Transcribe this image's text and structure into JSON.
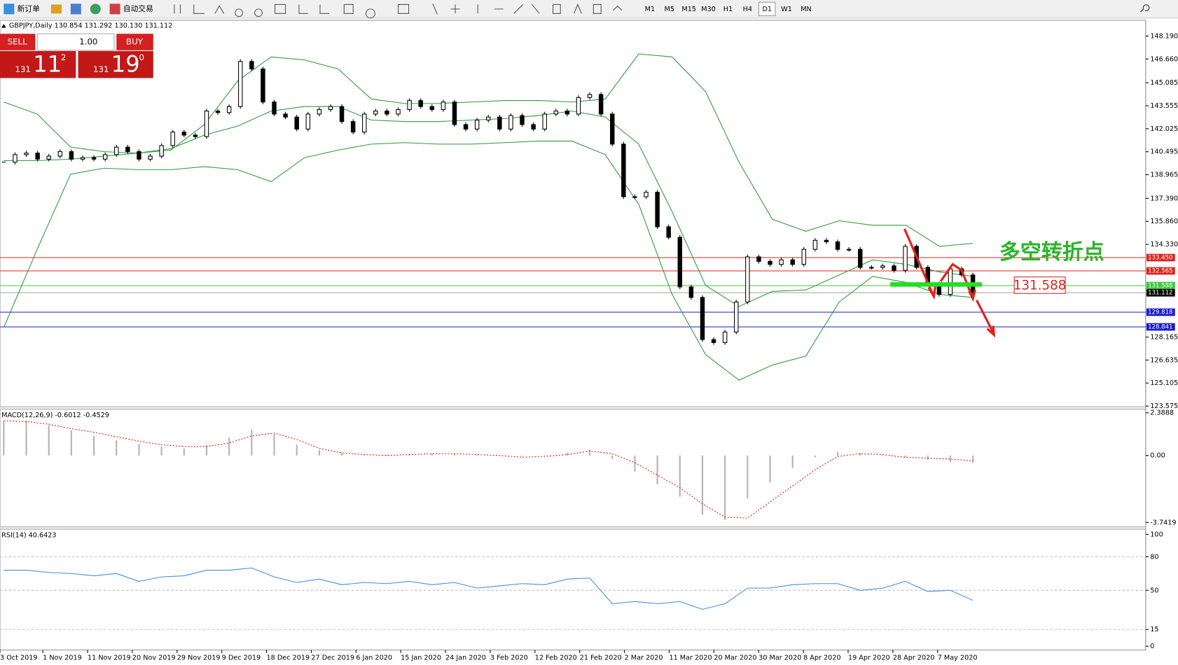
{
  "toolbar": {
    "new_order": "新订单",
    "auto_trading": "自动交易",
    "timeframes": [
      "M1",
      "M5",
      "M15",
      "M30",
      "H1",
      "H4",
      "D1",
      "W1",
      "MN"
    ],
    "active_timeframe": "D1"
  },
  "trade_panel": {
    "sell": "SELL",
    "buy": "BUY",
    "lots": "1.00",
    "sell_price": {
      "big": "131",
      "main": "11",
      "sup": "2"
    },
    "buy_price": {
      "big": "131",
      "main": "19",
      "sup": "0"
    }
  },
  "chart_data": [
    {
      "type": "candlestick",
      "title": "GBPJPY,Daily  130.854 131.292 130.130 131.112",
      "values": [
        139.8,
        140.3,
        140.4,
        140.0,
        140.2,
        140.5,
        140.0,
        140.1,
        140.0,
        140.3,
        140.8,
        140.5,
        140.0,
        140.2,
        140.9,
        141.8,
        141.6,
        141.5,
        143.2,
        143.1,
        143.5,
        146.5,
        146.0,
        143.8,
        143.0,
        142.8,
        142.0,
        143.0,
        143.3,
        143.5,
        142.5,
        141.8,
        143.0,
        143.2,
        143.0,
        143.3,
        143.9,
        143.5,
        143.3,
        143.8,
        142.3,
        142.0,
        142.6,
        142.8,
        142.0,
        142.9,
        142.3,
        142.0,
        143.0,
        143.2,
        143.0,
        144.1,
        144.3,
        143.0,
        141.0,
        137.5,
        137.5,
        137.8,
        135.5,
        134.8,
        131.5,
        130.8,
        128.0,
        127.8,
        128.5,
        130.5,
        133.5,
        133.2,
        133.0,
        133.3,
        133.0,
        134.0,
        134.6,
        134.5,
        134.0,
        134.0,
        132.8,
        132.8,
        132.9,
        132.6,
        134.2,
        132.8,
        131.7,
        131.0,
        132.7,
        132.3,
        131.1
      ],
      "bands": {
        "color": "#2e9b3a",
        "upper": [
          143.8,
          143.0,
          140.8,
          140.5,
          140.4,
          140.6,
          142.3,
          145.2,
          146.8,
          146.6,
          146.0,
          144.0,
          143.7,
          143.7,
          143.8,
          143.9,
          143.9,
          143.8,
          144.0,
          147.0,
          146.8,
          144.5,
          139.8,
          136.0,
          135.2,
          135.9,
          135.6,
          135.6,
          134.2,
          134.4
        ],
        "middle": [
          139.9,
          139.9,
          140.0,
          140.2,
          140.4,
          140.7,
          141.6,
          142.2,
          143.2,
          143.5,
          143.5,
          142.6,
          142.5,
          142.5,
          142.6,
          142.7,
          142.9,
          143.2,
          142.8,
          141.0,
          136.5,
          131.6,
          130.2,
          131.2,
          131.3,
          132.3,
          133.3,
          133.0,
          132.5,
          132.2
        ],
        "lower": [
          128.8,
          134.0,
          139.0,
          139.4,
          139.3,
          139.3,
          139.5,
          139.3,
          138.5,
          140.1,
          140.6,
          141.0,
          141.1,
          141.0,
          141.0,
          141.1,
          141.2,
          141.2,
          140.3,
          137.0,
          131.0,
          127.0,
          125.3,
          126.3,
          126.9,
          130.5,
          132.2,
          131.8,
          131.0,
          130.8
        ]
      },
      "ylim": [
        123.575,
        148.19
      ],
      "yticks": [
        {
          "value": 148.19,
          "label": "148.190"
        },
        {
          "value": 146.66,
          "label": "146.660"
        },
        145.085,
        143.555,
        142.025,
        140.495,
        138.965,
        {
          "value": 137.39,
          "label": "137.390"
        },
        {
          "value": 135.86,
          "label": "135.860"
        },
        {
          "value": 134.33,
          "label": "134.330"
        },
        128.165,
        126.635,
        125.105,
        123.575
      ],
      "levels": [
        {
          "value": 133.45,
          "label": "133.450",
          "color": "#e0241c"
        },
        {
          "value": 132.565,
          "color": "#e0241c"
        },
        {
          "value": 131.588,
          "color": "#3cc83c"
        },
        {
          "value": 131.112,
          "color": "#000000"
        },
        {
          "value": 129.818,
          "color": "#1a1ad0"
        },
        {
          "value": 128.841,
          "color": "#1a1ad0"
        }
      ],
      "annotations": {
        "pivot": "多空转折点",
        "pivot_price": "131.588"
      },
      "x_labels": [
        "3 Oct 2019",
        "1 Nov 2019",
        "11 Nov 2019",
        "20 Nov 2019",
        "29 Nov 2019",
        "9 Dec 2019",
        "18 Dec 2019",
        "27 Dec 2019",
        "6 Jan 2020",
        "15 Jan 2020",
        "24 Jan 2020",
        "3 Feb 2020",
        "12 Feb 2020",
        "21 Feb 2020",
        "2 Mar 2020",
        "11 Mar 2020",
        "20 Mar 2020",
        "30 Mar 2020",
        "8 Apr 2020",
        "19 Apr 2020",
        "28 Apr 2020",
        "7 May 2020"
      ]
    },
    {
      "type": "macd",
      "title": "MACD(12,26,9) -0.6012 -0.4529",
      "histogram": [
        1.95,
        1.95,
        1.7,
        1.4,
        1.1,
        0.85,
        0.65,
        0.5,
        0.4,
        0.6,
        1.0,
        1.45,
        1.2,
        0.6,
        0.3,
        0.15,
        0.05,
        0.05,
        0.1,
        0.1,
        0.1,
        0.05,
        0.0,
        -0.05,
        0.0,
        0.15,
        0.3,
        -0.2,
        -0.9,
        -1.6,
        -2.3,
        -3.3,
        -3.6,
        -2.4,
        -1.5,
        -0.7,
        -0.1,
        0.2,
        0.15,
        0.05,
        -0.1,
        -0.25,
        -0.35,
        -0.4
      ],
      "signal": [
        1.95,
        1.9,
        1.75,
        1.5,
        1.3,
        1.05,
        0.8,
        0.6,
        0.5,
        0.5,
        0.7,
        1.1,
        1.25,
        0.9,
        0.4,
        0.15,
        0.05,
        0.0,
        0.05,
        0.1,
        0.1,
        0.05,
        0.0,
        -0.1,
        -0.05,
        0.05,
        0.25,
        0.1,
        -0.4,
        -1.1,
        -1.8,
        -2.7,
        -3.45,
        -3.5,
        -2.6,
        -1.7,
        -0.8,
        -0.05,
        0.1,
        0.05,
        -0.1,
        -0.15,
        -0.2,
        -0.3
      ],
      "histogram_color": "#b4b4b4",
      "signal_color": "#e0241c",
      "ylim": [
        -3.7419,
        2.3888
      ],
      "yticks": [
        2.3888,
        {
          "value": 0,
          "label": "0.00"
        },
        -3.7419
      ]
    },
    {
      "type": "rsi",
      "title": "RSI(14) 40.6423",
      "values": [
        68,
        68,
        66,
        65,
        63,
        65,
        58,
        62,
        63,
        68,
        68,
        70,
        62,
        57,
        60,
        55,
        57,
        56,
        58,
        55,
        57,
        52,
        54,
        56,
        55,
        60,
        61,
        38,
        40,
        38,
        40,
        33,
        38,
        52,
        52,
        55,
        56,
        56,
        50,
        52,
        58,
        49,
        50,
        41
      ],
      "color": "#3d8fe0",
      "ylim": [
        0,
        100
      ],
      "yticks": [
        100,
        80,
        50,
        15,
        0
      ],
      "grid": [
        80,
        50,
        15
      ]
    }
  ]
}
